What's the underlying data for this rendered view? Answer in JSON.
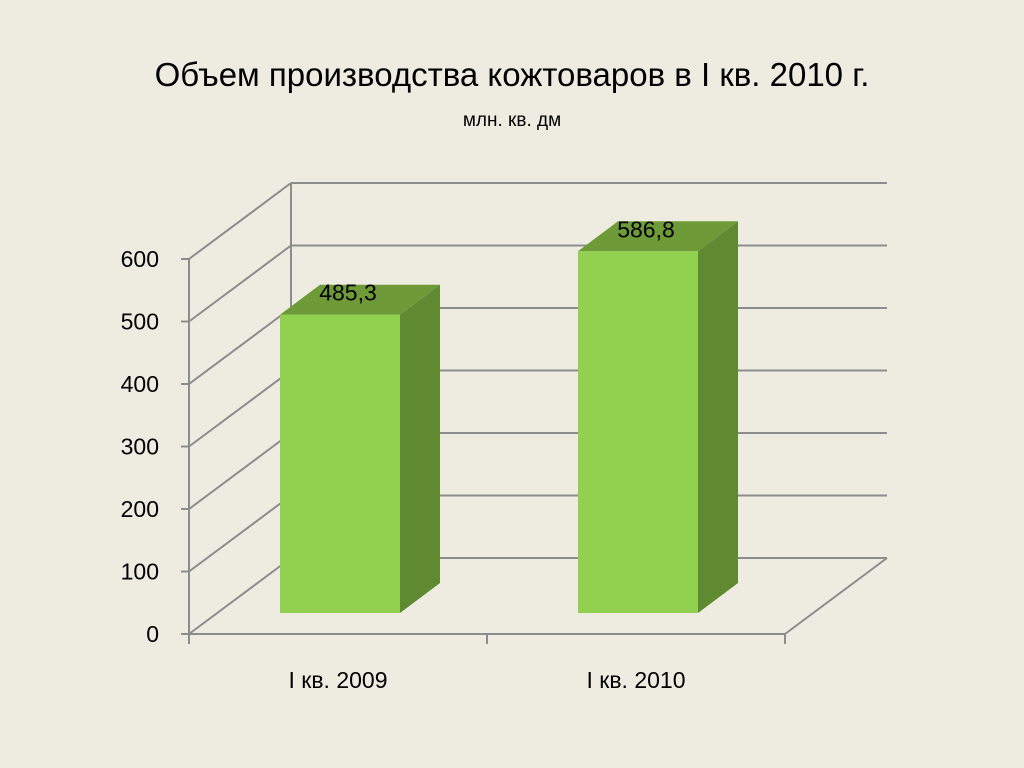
{
  "chart_data": {
    "type": "bar",
    "title": "Объем производства кожтоваров в  I кв. 2010 г.",
    "subtitle": "млн. кв. дм",
    "categories": [
      "I кв. 2009",
      "I кв. 2010"
    ],
    "values": [
      485.3,
      586.8
    ],
    "value_labels": [
      "485,3",
      "586,8"
    ],
    "ylim": [
      0,
      600
    ],
    "yticks": [
      0,
      100,
      200,
      300,
      400,
      500,
      600
    ],
    "grid": true,
    "legend": "none",
    "colors": {
      "bar_front": "#92d050",
      "bar_side": "#5f8a31",
      "bar_top": "#6e9b37",
      "grid": "#8c8c8c",
      "background": "#eeece1"
    }
  }
}
